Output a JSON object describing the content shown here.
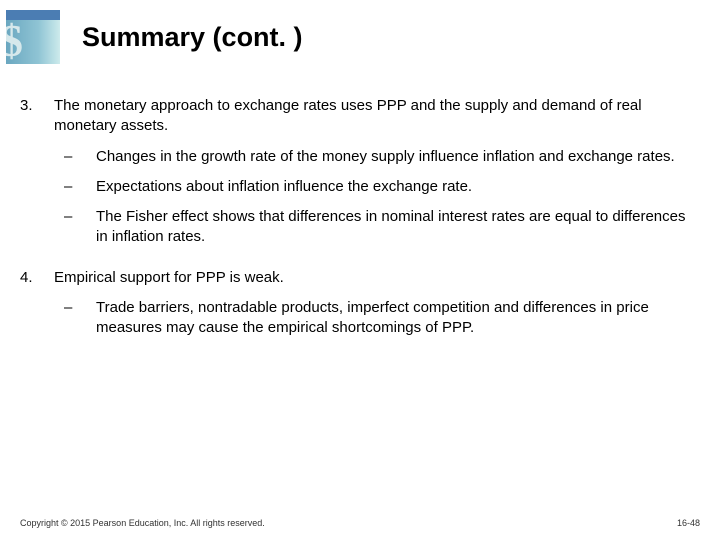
{
  "slide": {
    "title": "Summary (cont. )",
    "items": [
      {
        "number": "3.",
        "text": "The monetary approach to exchange rates uses PPP and the supply and demand of real monetary assets.",
        "subitems": [
          "Changes in the growth rate of the money supply influence inflation and exchange rates.",
          "Expectations about inflation influence the exchange rate.",
          "The Fisher effect shows that differences in nominal interest rates are equal to differences in inflation rates."
        ]
      },
      {
        "number": "4.",
        "text": "Empirical support for PPP is weak.",
        "subitems": [
          "Trade barriers, nontradable products, imperfect competition and differences in price measures may cause the empirical shortcomings of PPP."
        ]
      }
    ],
    "bullet_dash": "–",
    "footer": {
      "copyright": "Copyright © 2015 Pearson Education, Inc. All rights reserved.",
      "page": "16-48"
    },
    "colors": {
      "title": "#000000",
      "body": "#000000",
      "footer": "#323232",
      "logo_top": "#4b7db3",
      "logo_grad_start": "#6aa7c0",
      "logo_grad_end": "#cdebec",
      "background": "#ffffff"
    },
    "fonts": {
      "title_size_pt": 20,
      "body_size_pt": 11,
      "footer_size_pt": 7,
      "family": "Verdana"
    }
  }
}
